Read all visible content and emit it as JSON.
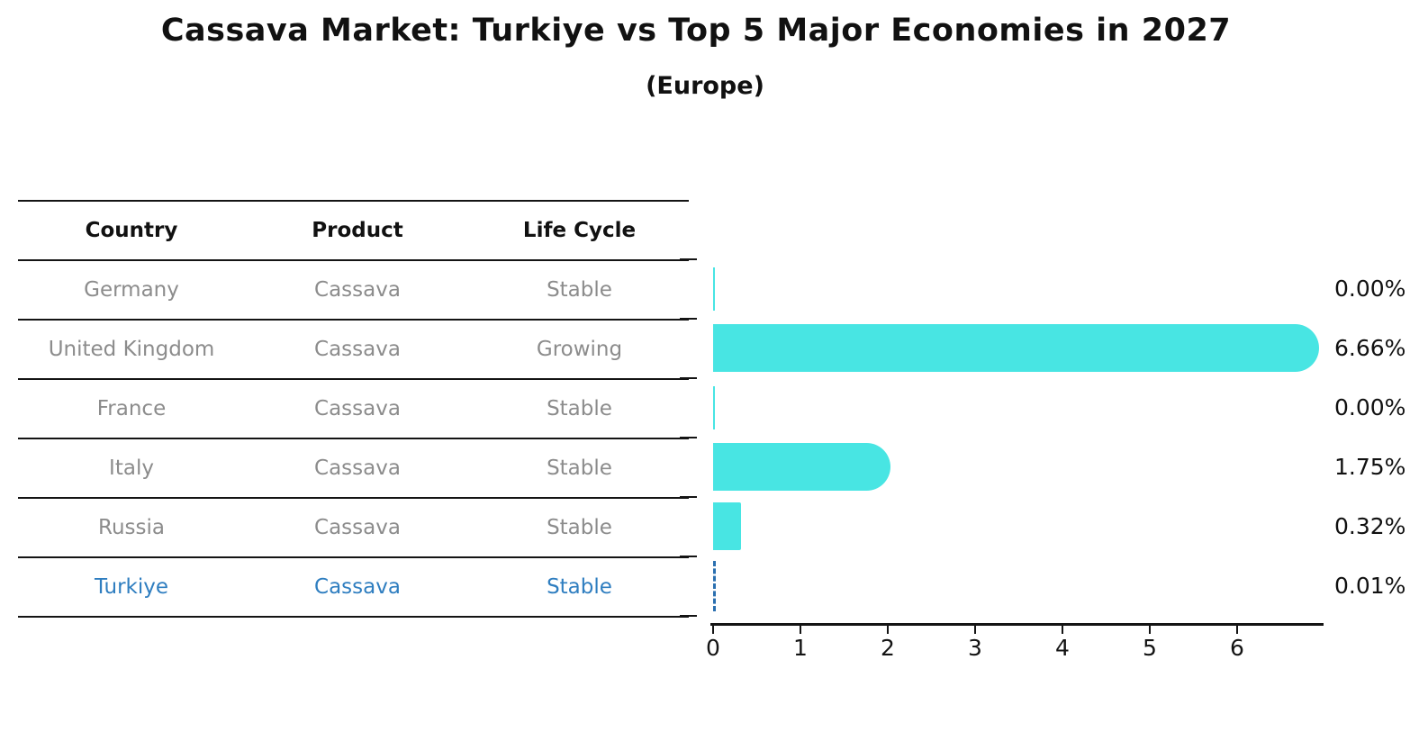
{
  "title": "Cassava Market: Turkiye vs Top 5 Major Economies in 2027",
  "subtitle": "(Europe)",
  "table": {
    "headers": [
      "Country",
      "Product",
      "Life Cycle"
    ],
    "rows": [
      {
        "country": "Germany",
        "product": "Cassava",
        "life_cycle": "Stable",
        "highlight": false
      },
      {
        "country": "United Kingdom",
        "product": "Cassava",
        "life_cycle": "Growing",
        "highlight": false
      },
      {
        "country": "France",
        "product": "Cassava",
        "life_cycle": "Stable",
        "highlight": false
      },
      {
        "country": "Italy",
        "product": "Cassava",
        "life_cycle": "Stable",
        "highlight": false
      },
      {
        "country": "Russia",
        "product": "Cassava",
        "life_cycle": "Stable",
        "highlight": false
      },
      {
        "country": "Turkiye",
        "product": "Cassava",
        "life_cycle": "Stable",
        "highlight": true
      }
    ]
  },
  "chart_data": {
    "type": "bar",
    "orientation": "horizontal",
    "title": "Cassava Market: Turkiye vs Top 5 Major Economies in 2027",
    "subtitle": "(Europe)",
    "categories": [
      "Germany",
      "United Kingdom",
      "France",
      "Italy",
      "Russia",
      "Turkiye"
    ],
    "values": [
      0.0,
      6.66,
      0.0,
      1.75,
      0.32,
      0.01
    ],
    "value_labels": [
      "0.00%",
      "6.66%",
      "0.00%",
      "1.75%",
      "0.32%",
      "0.01%"
    ],
    "xlabel": "",
    "ylabel": "",
    "xlim": [
      0,
      7
    ],
    "xticks": [
      "0",
      "1",
      "2",
      "3",
      "4",
      "5",
      "6"
    ],
    "grid": false,
    "legend": "none",
    "bar_color": "#48e5e3",
    "highlight_index": 5,
    "highlight_style": "dashed-blue-line",
    "highlight_color": "#2f7ec0",
    "muted_text_color": "#8c8c8c",
    "axis_color": "#141414"
  }
}
